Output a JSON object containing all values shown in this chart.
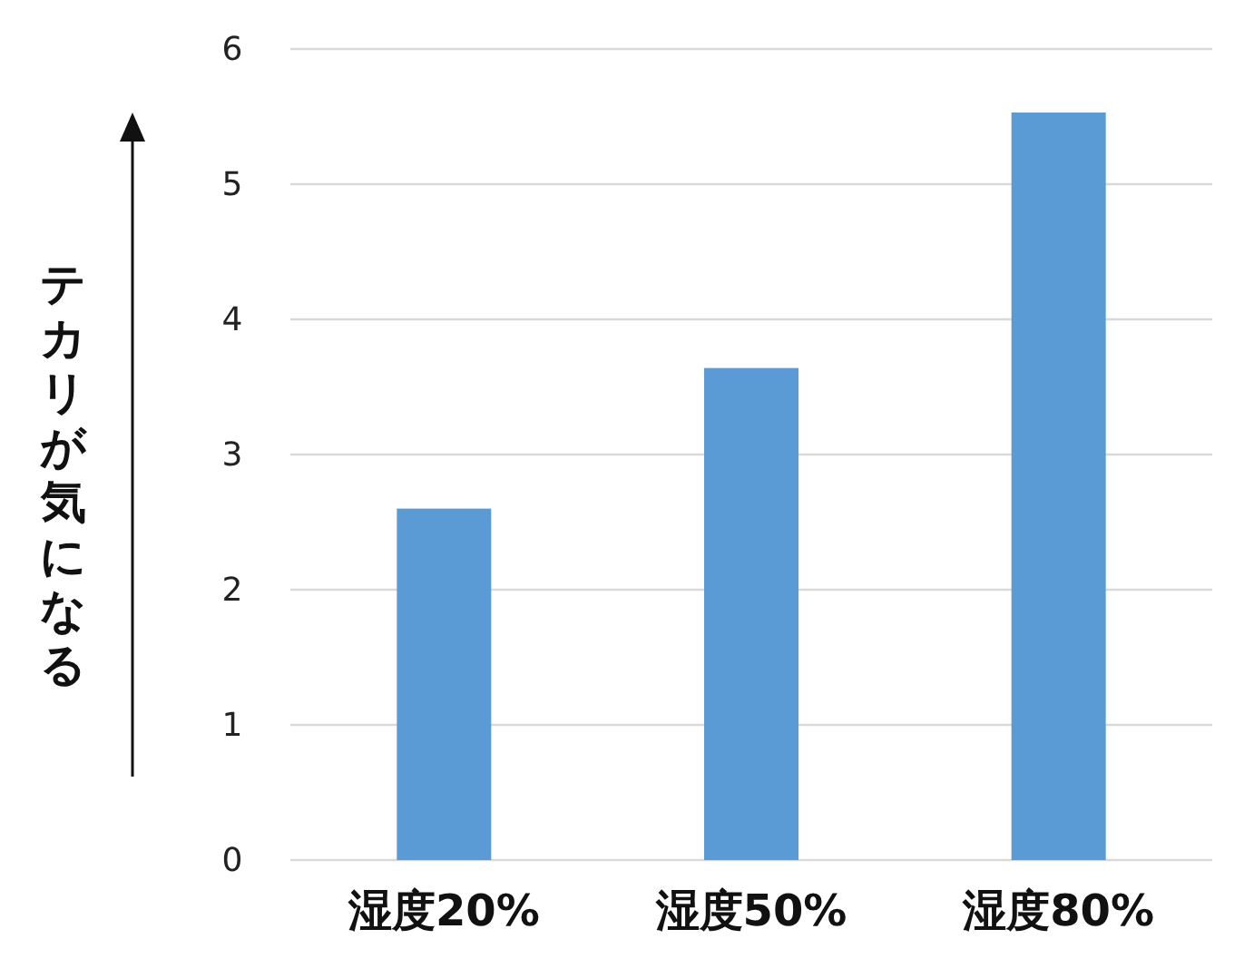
{
  "chart_data": {
    "type": "bar",
    "ylabel": "テカリが気になる",
    "categories": [
      "湿度20%",
      "湿度50%",
      "湿度80%"
    ],
    "values": [
      2.6,
      3.64,
      5.53
    ],
    "color": "#5b9bd5",
    "ylim": [
      0,
      6
    ],
    "yticks": [
      0,
      1,
      2,
      3,
      4,
      5,
      6
    ],
    "grid": "y"
  }
}
